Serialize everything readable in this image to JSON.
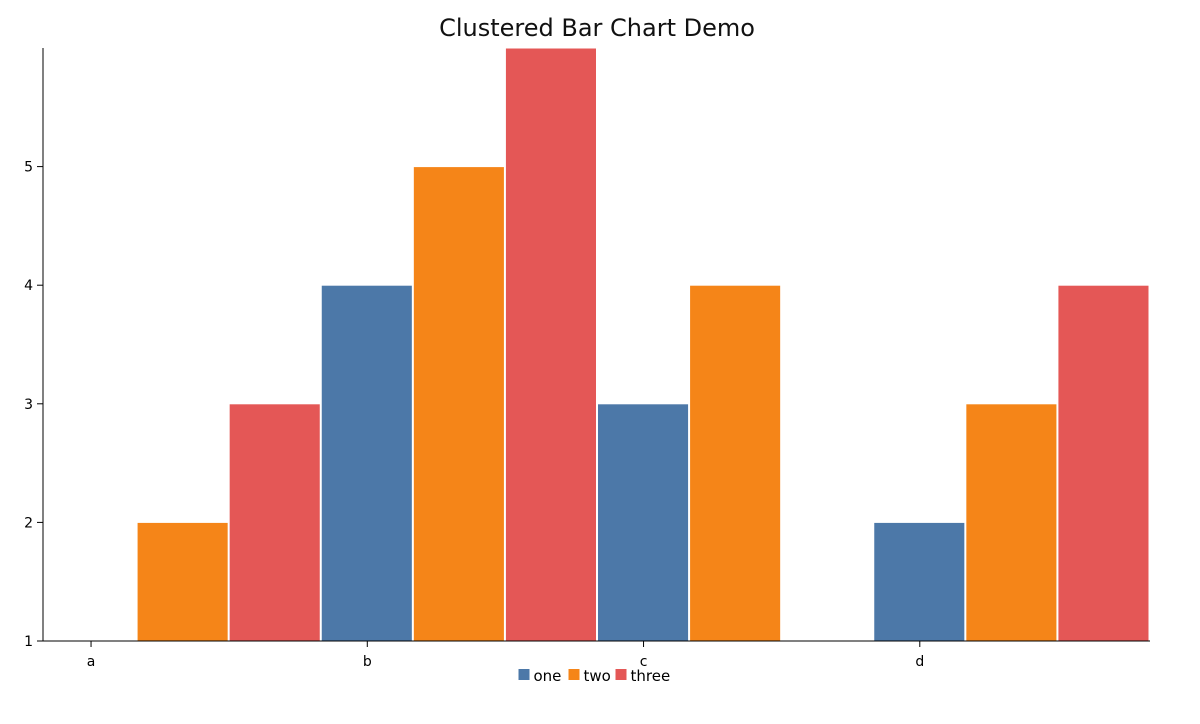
{
  "chart_data": {
    "type": "bar",
    "title": "Clustered Bar Chart Demo",
    "categories": [
      "a",
      "b",
      "c",
      "d"
    ],
    "series": [
      {
        "name": "one",
        "color": "#4c78a8",
        "values": [
          null,
          4,
          3,
          2
        ]
      },
      {
        "name": "two",
        "color": "#f58518",
        "values": [
          2,
          5,
          4,
          3
        ]
      },
      {
        "name": "three",
        "color": "#e45756",
        "values": [
          3,
          6,
          null,
          4
        ]
      }
    ],
    "ylim": [
      1,
      6
    ],
    "yticks": [
      "1",
      "2",
      "3",
      "4",
      "5"
    ],
    "grid": false,
    "legend_position": "bottom"
  }
}
